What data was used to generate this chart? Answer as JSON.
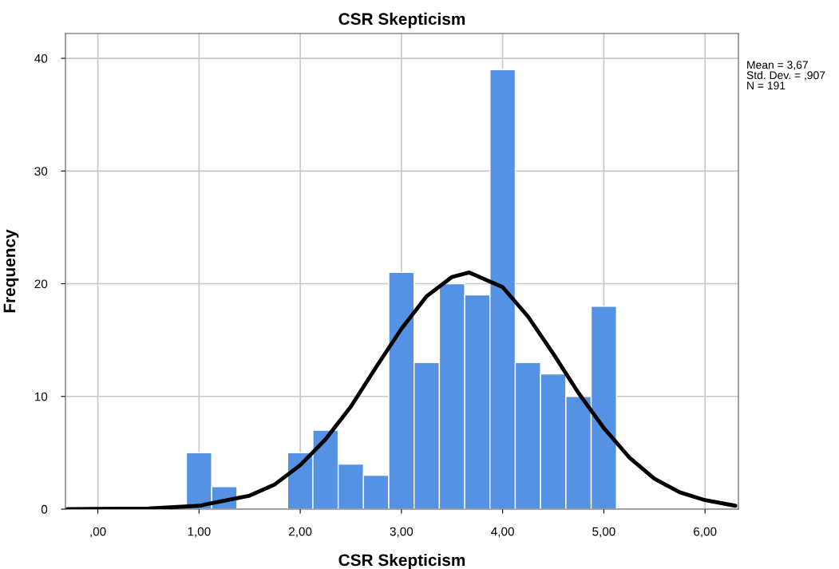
{
  "chart_data": {
    "type": "histogram",
    "title": "CSR Skepticism",
    "xlabel": "CSR Skepticism",
    "ylabel": "Frequency",
    "bins": [
      0.875,
      1.125,
      1.375,
      1.625,
      1.875,
      2.125,
      2.375,
      2.625,
      2.875,
      3.125,
      3.375,
      3.625,
      3.875,
      4.125,
      4.375,
      4.625,
      4.875,
      5.125
    ],
    "values": [
      5,
      2,
      0,
      0,
      5,
      7,
      4,
      3,
      21,
      13,
      20,
      19,
      39,
      13,
      12,
      10,
      18
    ],
    "color": "#5592e3",
    "series": [
      {
        "type": "line",
        "color": "#000000",
        "x": [
          -0.3,
          0.5,
          1.0,
          1.5,
          1.75,
          2.0,
          2.25,
          2.5,
          2.75,
          3.0,
          3.25,
          3.5,
          3.67,
          4.0,
          4.25,
          4.5,
          4.75,
          5.0,
          5.25,
          5.5,
          5.75,
          6.0,
          6.3
        ],
        "values": [
          0.0,
          0.05,
          0.3,
          1.2,
          2.2,
          3.9,
          6.2,
          9.1,
          12.6,
          16.0,
          18.9,
          20.6,
          21.0,
          19.7,
          17.1,
          13.8,
          10.3,
          7.2,
          4.6,
          2.7,
          1.5,
          0.8,
          0.3
        ]
      }
    ],
    "xlim": [
      -0.32,
      6.33
    ],
    "ylim": [
      0,
      42.2
    ],
    "xticks": [
      {
        "value": 0,
        "label": ",00"
      },
      {
        "value": 1,
        "label": "1,00"
      },
      {
        "value": 2,
        "label": "2,00"
      },
      {
        "value": 3,
        "label": "3,00"
      },
      {
        "value": 4,
        "label": "4,00"
      },
      {
        "value": 5,
        "label": "5,00"
      },
      {
        "value": 6,
        "label": "6,00"
      }
    ],
    "yticks": [
      0,
      10,
      20,
      30,
      40
    ],
    "grid": true,
    "annotations": [
      "Mean = 3,67",
      "Std. Dev. = ,907",
      "N = 191"
    ]
  }
}
